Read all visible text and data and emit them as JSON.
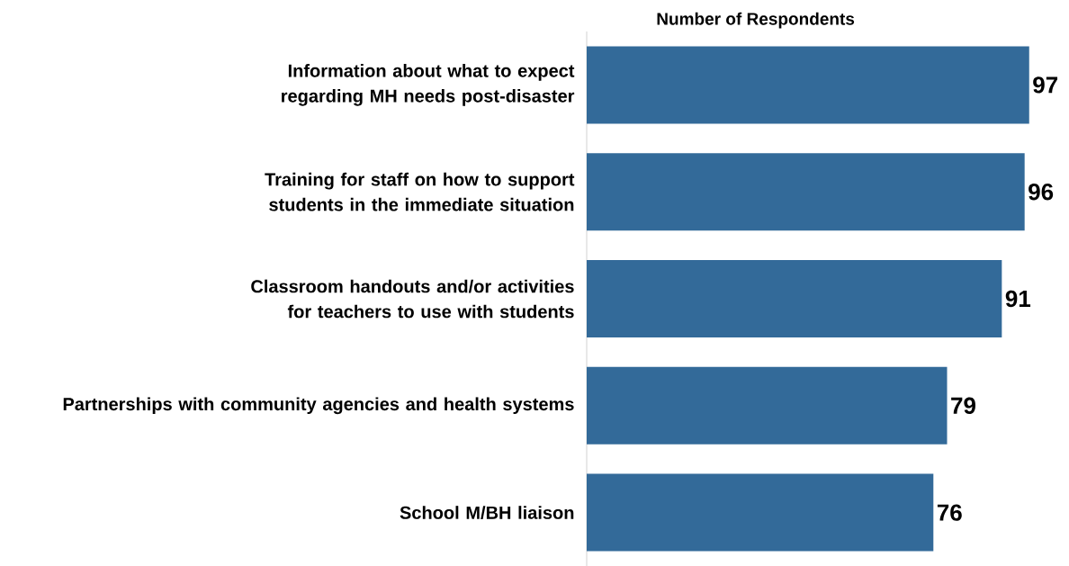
{
  "chart_data": {
    "type": "bar",
    "orientation": "horizontal",
    "xlabel": "Number of Respondents",
    "categories": [
      "Information about what to expect regarding MH needs post-disaster",
      "Training for staff on how to support students in the immediate situation",
      "Classroom handouts and/or activities for teachers to use with students",
      "Partnerships with community agencies and health systems",
      "School M/BH liaison"
    ],
    "values": [
      97,
      96,
      91,
      79,
      76
    ],
    "color": "#336a99",
    "data_labels": true
  }
}
